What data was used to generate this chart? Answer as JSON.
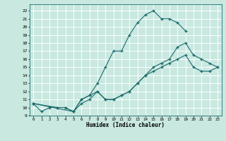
{
  "xlabel": "Humidex (Indice chaleur)",
  "bg_color": "#c8e8e0",
  "grid_color": "#ffffff",
  "line_color": "#1a6b6b",
  "xlim": [
    -0.5,
    23.5
  ],
  "ylim": [
    9,
    22.8
  ],
  "xticks": [
    0,
    1,
    2,
    3,
    4,
    5,
    6,
    7,
    8,
    9,
    10,
    11,
    12,
    13,
    14,
    15,
    16,
    17,
    18,
    19,
    20,
    21,
    22,
    23
  ],
  "yticks": [
    9,
    10,
    11,
    12,
    13,
    14,
    15,
    16,
    17,
    18,
    19,
    20,
    21,
    22
  ],
  "curve1_x": [
    0,
    1,
    2,
    3,
    4,
    5,
    6,
    7,
    8,
    9,
    10,
    11,
    12,
    13,
    14,
    15,
    16,
    17,
    18,
    19
  ],
  "curve1_y": [
    10.5,
    9.5,
    10,
    10,
    10,
    9.5,
    11,
    11.5,
    13,
    15,
    17,
    17,
    19,
    20.5,
    21.5,
    22,
    21,
    21,
    20.5,
    19.5
  ],
  "curve2_x": [
    0,
    3,
    4,
    5,
    6,
    7,
    8,
    9,
    10,
    11,
    12,
    13,
    14,
    15,
    16,
    17,
    18,
    19,
    20,
    21,
    22,
    23
  ],
  "curve2_y": [
    10.5,
    10,
    10,
    9.5,
    11,
    11.5,
    12,
    11,
    11,
    11.5,
    12,
    13,
    14,
    15,
    15.5,
    16,
    17.5,
    18,
    16.5,
    16,
    15.5,
    15
  ],
  "curve3_x": [
    0,
    5,
    6,
    7,
    8,
    9,
    10,
    11,
    12,
    13,
    14,
    15,
    16,
    17,
    18,
    19,
    20,
    21,
    22,
    23
  ],
  "curve3_y": [
    10.5,
    9.5,
    10.5,
    11,
    12,
    11,
    11,
    11.5,
    12,
    13,
    14,
    14.5,
    15,
    15.5,
    16,
    16.5,
    15,
    14.5,
    14.5,
    15
  ]
}
